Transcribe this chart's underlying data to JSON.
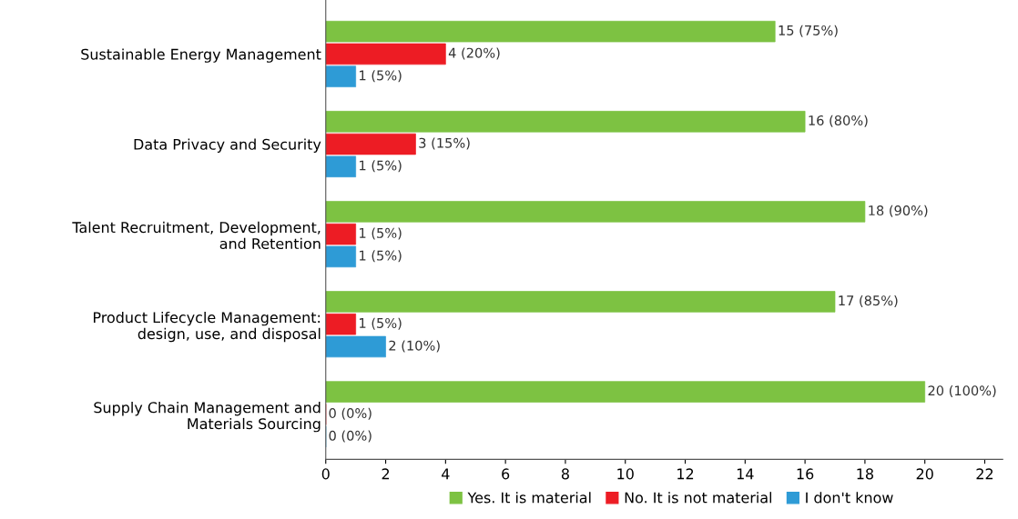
{
  "chart_data": {
    "type": "bar",
    "orientation": "horizontal",
    "categories": [
      "Sustainable Energy Management",
      "Data Privacy and Security",
      "Talent Recruitment, Development,\nand Retention",
      "Product Lifecycle Management:\ndesign, use, and disposal",
      "Supply Chain Management and\nMaterials Sourcing"
    ],
    "series": [
      {
        "name": "Yes. It is material",
        "color": "#7dc242",
        "values": [
          15,
          16,
          18,
          17,
          20
        ],
        "value_labels": [
          "15 (75%)",
          "16 (80%)",
          "18 (90%)",
          "17 (85%)",
          "20 (100%)"
        ]
      },
      {
        "name": "No. It is not material",
        "color": "#ed1c24",
        "values": [
          4,
          3,
          1,
          1,
          0
        ],
        "value_labels": [
          "4 (20%)",
          "3 (15%)",
          "1 (5%)",
          "1 (5%)",
          "0 (0%)"
        ]
      },
      {
        "name": "I don't know",
        "color": "#2e9bd6",
        "values": [
          1,
          1,
          1,
          2,
          0
        ],
        "value_labels": [
          "1 (5%)",
          "1 (5%)",
          "1 (5%)",
          "2 (10%)",
          "0 (0%)"
        ]
      }
    ],
    "xlim": [
      0,
      22.6
    ],
    "xticks": [
      0,
      2,
      4,
      6,
      8,
      10,
      12,
      14,
      16,
      18,
      20,
      22
    ],
    "grid": false,
    "legend": "bottom"
  }
}
